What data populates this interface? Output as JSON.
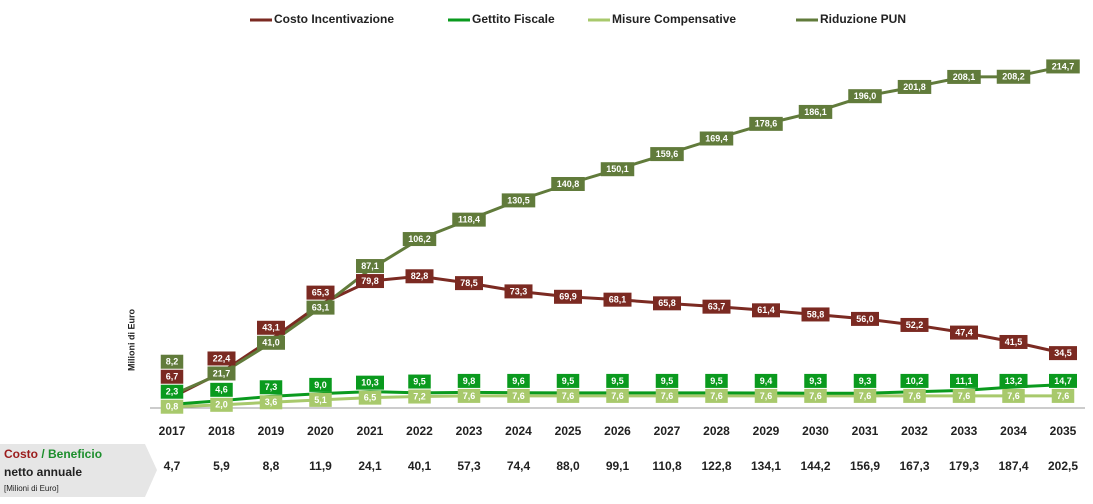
{
  "chart_data": {
    "type": "line",
    "y_axis_label": "Milioni di Euro",
    "categories": [
      "2017",
      "2018",
      "2019",
      "2020",
      "2021",
      "2022",
      "2023",
      "2024",
      "2025",
      "2026",
      "2027",
      "2028",
      "2029",
      "2030",
      "2031",
      "2032",
      "2033",
      "2034",
      "2035"
    ],
    "ylim": [
      0,
      220
    ],
    "series": [
      {
        "name": "Costo Incentivazione",
        "color": "#7b2a22",
        "values": [
          6.7,
          22.4,
          43.1,
          65.3,
          79.8,
          82.8,
          78.5,
          73.3,
          69.9,
          68.1,
          65.8,
          63.7,
          61.4,
          58.8,
          56.0,
          52.2,
          47.4,
          41.5,
          34.5
        ],
        "value_labels": [
          "6,7",
          "22,4",
          "43,1",
          "65,3",
          "79,8",
          "82,8",
          "78,5",
          "73,3",
          "69,9",
          "68,1",
          "65,8",
          "63,7",
          "61,4",
          "58,8",
          "56,0",
          "52,2",
          "47,4",
          "41,5",
          "34,5"
        ]
      },
      {
        "name": "Gettito Fiscale",
        "color": "#0a9a1e",
        "values": [
          2.3,
          4.6,
          7.3,
          9.0,
          10.3,
          9.5,
          9.8,
          9.6,
          9.5,
          9.5,
          9.5,
          9.5,
          9.4,
          9.3,
          9.3,
          10.2,
          11.1,
          13.2,
          14.7
        ],
        "value_labels": [
          "2,3",
          "4,6",
          "7,3",
          "9,0",
          "10,3",
          "9,5",
          "9,8",
          "9,6",
          "9,5",
          "9,5",
          "9,5",
          "9,5",
          "9,4",
          "9,3",
          "9,3",
          "10,2",
          "11,1",
          "13,2",
          "14,7"
        ]
      },
      {
        "name": "Misure Compensative",
        "color": "#a8c96c",
        "values": [
          0.8,
          2.0,
          3.6,
          5.1,
          6.5,
          7.2,
          7.6,
          7.6,
          7.6,
          7.6,
          7.6,
          7.6,
          7.6,
          7.6,
          7.6,
          7.6,
          7.6,
          7.6,
          7.6
        ],
        "value_labels": [
          "0,8",
          "2,0",
          "3,6",
          "5,1",
          "6,5",
          "7,2",
          "7,6",
          "7,6",
          "7,6",
          "7,6",
          "7,6",
          "7,6",
          "7,6",
          "7,6",
          "7,6",
          "7,6",
          "7,6",
          "7,6",
          "7,6"
        ]
      },
      {
        "name": "Riduzione PUN",
        "color": "#617b3b",
        "values": [
          8.2,
          21.7,
          41.0,
          63.1,
          87.1,
          106.2,
          118.4,
          130.5,
          140.8,
          150.1,
          159.6,
          169.4,
          178.6,
          186.1,
          196.0,
          201.8,
          208.1,
          208.2,
          214.7
        ],
        "value_labels": [
          "8,2",
          "21,7",
          "41,0",
          "63,1",
          "87,1",
          "106,2",
          "118,4",
          "130,5",
          "140,8",
          "150,1",
          "159,6",
          "169,4",
          "178,6",
          "186,1",
          "196,0",
          "201,8",
          "208,1",
          "208,2",
          "214,7"
        ]
      }
    ],
    "net": {
      "cost": "Costo",
      "benefit": "/ Beneficio",
      "line2": "netto annuale",
      "unit": "[Milioni di Euro]",
      "values": [
        4.7,
        5.9,
        8.8,
        11.9,
        24.1,
        40.1,
        57.3,
        74.4,
        88.0,
        99.1,
        110.8,
        122.8,
        134.1,
        144.2,
        156.9,
        167.3,
        179.3,
        187.4,
        202.5
      ],
      "value_labels": [
        "4,7",
        "5,9",
        "8,8",
        "11,9",
        "24,1",
        "40,1",
        "57,3",
        "74,4",
        "88,0",
        "99,1",
        "110,8",
        "122,8",
        "134,1",
        "144,2",
        "156,9",
        "167,3",
        "179,3",
        "187,4",
        "202,5"
      ]
    }
  }
}
